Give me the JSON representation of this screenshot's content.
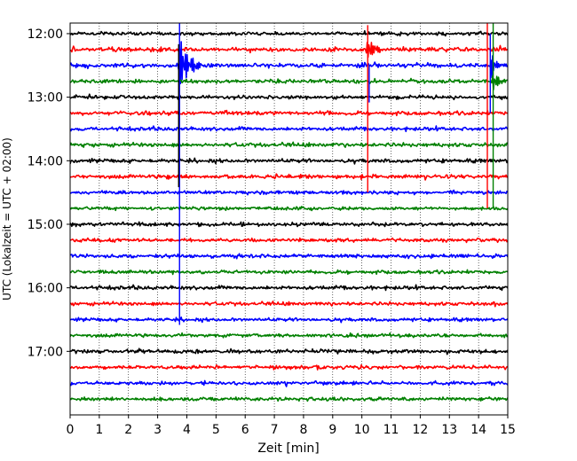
{
  "chart_data": {
    "type": "line",
    "title": "",
    "xlabel": "Zeit  [min]",
    "ylabel": "UTC (Lokalzeit = UTC + 02:00)",
    "xlim": [
      0,
      15
    ],
    "x_ticks": [
      "0",
      "1",
      "2",
      "3",
      "4",
      "5",
      "6",
      "7",
      "8",
      "9",
      "10",
      "11",
      "12",
      "13",
      "14",
      "15"
    ],
    "y_ticks": [
      "12:00",
      "13:00",
      "14:00",
      "15:00",
      "16:00",
      "17:00"
    ],
    "y_range": [
      "11:50",
      "18:00"
    ],
    "grid": "vertical dotted",
    "color_cycle": [
      "#000000",
      "#ff0000",
      "#0000ff",
      "#008000"
    ],
    "trace_interval_min": 15,
    "traces": [
      {
        "start": "12:00",
        "color": "#000000",
        "amp": 0.9
      },
      {
        "start": "12:15",
        "color": "#ff0000",
        "amp": 1.1
      },
      {
        "start": "12:30",
        "color": "#0000ff",
        "amp": 1.1
      },
      {
        "start": "12:45",
        "color": "#008000",
        "amp": 1.0
      },
      {
        "start": "13:00",
        "color": "#000000",
        "amp": 0.9
      },
      {
        "start": "13:15",
        "color": "#ff0000",
        "amp": 1.0
      },
      {
        "start": "13:30",
        "color": "#0000ff",
        "amp": 1.0
      },
      {
        "start": "13:45",
        "color": "#008000",
        "amp": 1.0
      },
      {
        "start": "14:00",
        "color": "#000000",
        "amp": 1.0
      },
      {
        "start": "14:15",
        "color": "#ff0000",
        "amp": 1.0
      },
      {
        "start": "14:30",
        "color": "#0000ff",
        "amp": 0.9
      },
      {
        "start": "14:45",
        "color": "#008000",
        "amp": 0.8
      },
      {
        "start": "15:00",
        "color": "#000000",
        "amp": 0.9
      },
      {
        "start": "15:15",
        "color": "#ff0000",
        "amp": 0.9
      },
      {
        "start": "15:30",
        "color": "#0000ff",
        "amp": 1.0
      },
      {
        "start": "15:45",
        "color": "#008000",
        "amp": 0.9
      },
      {
        "start": "16:00",
        "color": "#000000",
        "amp": 1.0
      },
      {
        "start": "16:15",
        "color": "#ff0000",
        "amp": 0.9
      },
      {
        "start": "16:30",
        "color": "#0000ff",
        "amp": 0.9
      },
      {
        "start": "16:45",
        "color": "#008000",
        "amp": 0.9
      },
      {
        "start": "17:00",
        "color": "#000000",
        "amp": 1.0
      },
      {
        "start": "17:15",
        "color": "#ff0000",
        "amp": 0.9
      },
      {
        "start": "17:30",
        "color": "#0000ff",
        "amp": 0.9
      },
      {
        "start": "17:45",
        "color": "#008000",
        "amp": 0.9
      }
    ],
    "events": [
      {
        "trace": "12:30",
        "t_min": 3.75,
        "amp_traces": 1.8,
        "duration_min": 0.9
      },
      {
        "trace": "12:15",
        "t_min": 10.2,
        "amp_traces": 0.9,
        "duration_min": 0.7
      },
      {
        "trace": "12:30",
        "t_min": 14.45,
        "amp_traces": 1.0,
        "duration_min": 0.4
      },
      {
        "trace": "12:45",
        "t_min": 14.5,
        "amp_traces": 0.7,
        "duration_min": 0.7
      },
      {
        "trace": "14:15",
        "t_min": 3.3,
        "amp_traces": 0.18,
        "duration_min": 0.5
      },
      {
        "trace": "13:45",
        "t_min": 8.9,
        "amp_traces": 0.12,
        "duration_min": 0.4
      },
      {
        "trace": "15:00",
        "t_min": 12.5,
        "amp_traces": 0.08,
        "duration_min": 0.3
      },
      {
        "trace": "15:30",
        "t_min": 12.3,
        "amp_traces": 0.15,
        "duration_min": 1.3
      }
    ],
    "spikes": [
      {
        "t_min": 3.75,
        "from": "11:50",
        "to": "16:35",
        "color": "#0000ff"
      },
      {
        "t_min": 3.72,
        "from": "12:10",
        "to": "14:25",
        "color": "#000000"
      },
      {
        "t_min": 10.2,
        "from": "11:52",
        "to": "14:30",
        "color": "#ff0000"
      },
      {
        "t_min": 10.25,
        "from": "12:30",
        "to": "13:05",
        "color": "#0000ff"
      },
      {
        "t_min": 14.3,
        "from": "11:50",
        "to": "14:45",
        "color": "#ff0000"
      },
      {
        "t_min": 14.5,
        "from": "11:50",
        "to": "14:45",
        "color": "#008000"
      },
      {
        "t_min": 14.4,
        "from": "12:00",
        "to": "13:15",
        "color": "#0000ff"
      }
    ]
  }
}
